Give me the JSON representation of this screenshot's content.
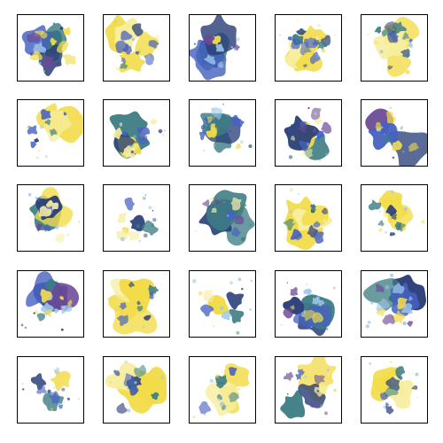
{
  "grid": {
    "rows": 5,
    "cols": 5,
    "palette": {
      "yellow": "#f2dc4a",
      "pale_yellow": "#f7eea0",
      "teal": "#3d7d84",
      "navy": "#2a3f78",
      "purple": "#6a4a96",
      "blue": "#4661c2",
      "light_blue": "#9ec7ea"
    },
    "tiles": [
      {
        "style": "blue"
      },
      {
        "style": "yellow"
      },
      {
        "style": "blue"
      },
      {
        "style": "yellow"
      },
      {
        "style": "yellow"
      },
      {
        "style": "yellow"
      },
      {
        "style": "mixed"
      },
      {
        "style": "teal"
      },
      {
        "style": "mixed"
      },
      {
        "style": "purple"
      },
      {
        "style": "mixed"
      },
      {
        "style": "sparse"
      },
      {
        "style": "mixed"
      },
      {
        "style": "yellow"
      },
      {
        "style": "yellow"
      },
      {
        "style": "purple"
      },
      {
        "style": "yellow"
      },
      {
        "style": "sparse"
      },
      {
        "style": "blue"
      },
      {
        "style": "blue"
      },
      {
        "style": "sparse"
      },
      {
        "style": "yellow"
      },
      {
        "style": "yellow"
      },
      {
        "style": "mixed"
      },
      {
        "style": "yellow"
      }
    ]
  }
}
